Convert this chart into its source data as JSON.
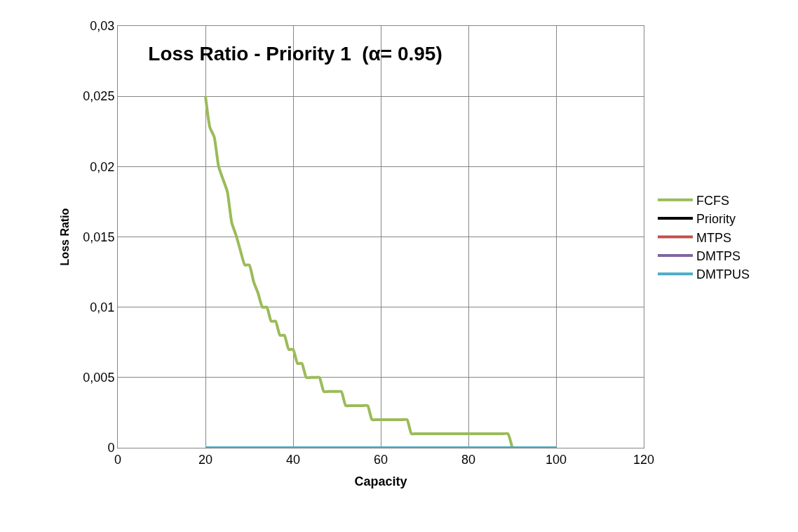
{
  "chart_data": {
    "type": "line",
    "title": "Loss Ratio - Priority 1  (α= 0.95)",
    "xlabel": "Capacity",
    "ylabel": "Loss Ratio",
    "xlim": [
      0,
      120
    ],
    "xticks": [
      0,
      20,
      40,
      60,
      80,
      100,
      120
    ],
    "ylim": [
      0,
      0.03
    ],
    "yticks": [
      {
        "value": 0,
        "label": "0"
      },
      {
        "value": 0.005,
        "label": "0,005"
      },
      {
        "value": 0.01,
        "label": "0,01"
      },
      {
        "value": 0.015,
        "label": "0,015"
      },
      {
        "value": 0.02,
        "label": "0,02"
      },
      {
        "value": 0.025,
        "label": "0,025"
      },
      {
        "value": 0.03,
        "label": "0,03"
      }
    ],
    "grid": true,
    "legend": "right",
    "line_style": "solid",
    "marker": "none",
    "series": [
      {
        "name": "FCFS",
        "color": "#9bbb59",
        "x": [
          20,
          21,
          22,
          23,
          24,
          25,
          26,
          27,
          28,
          29,
          30,
          31,
          32,
          33,
          34,
          35,
          36,
          37,
          38,
          39,
          40,
          41,
          42,
          43,
          44,
          45,
          46,
          47,
          48,
          49,
          50,
          51,
          52,
          53,
          54,
          55,
          56,
          57,
          58,
          59,
          60,
          61,
          62,
          63,
          64,
          65,
          66,
          67,
          68,
          69,
          70,
          71,
          72,
          73,
          74,
          75,
          76,
          77,
          78,
          79,
          80,
          81,
          82,
          83,
          84,
          85,
          86,
          87,
          88,
          89,
          90
        ],
        "values": [
          0.025,
          0.0228,
          0.0221,
          0.02,
          0.0191,
          0.0182,
          0.016,
          0.0151,
          0.014,
          0.013,
          0.013,
          0.0118,
          0.011,
          0.01,
          0.01,
          0.009,
          0.009,
          0.008,
          0.008,
          0.007,
          0.007,
          0.006,
          0.006,
          0.005,
          0.005,
          0.005,
          0.005,
          0.004,
          0.004,
          0.004,
          0.004,
          0.004,
          0.003,
          0.003,
          0.003,
          0.003,
          0.003,
          0.003,
          0.002,
          0.002,
          0.002,
          0.002,
          0.002,
          0.002,
          0.002,
          0.002,
          0.002,
          0.001,
          0.001,
          0.001,
          0.001,
          0.001,
          0.001,
          0.001,
          0.001,
          0.001,
          0.001,
          0.001,
          0.001,
          0.001,
          0.001,
          0.001,
          0.001,
          0.001,
          0.001,
          0.001,
          0.001,
          0.001,
          0.001,
          0.001,
          0
        ]
      },
      {
        "name": "Priority",
        "color": "#000000"
      },
      {
        "name": "MTPS",
        "color": "#c0504d"
      },
      {
        "name": "DMTPS",
        "color": "#8064a2"
      },
      {
        "name": "DMTPUS",
        "color": "#4bacc6",
        "x": [
          20,
          100
        ],
        "values": [
          0,
          0
        ]
      }
    ]
  }
}
